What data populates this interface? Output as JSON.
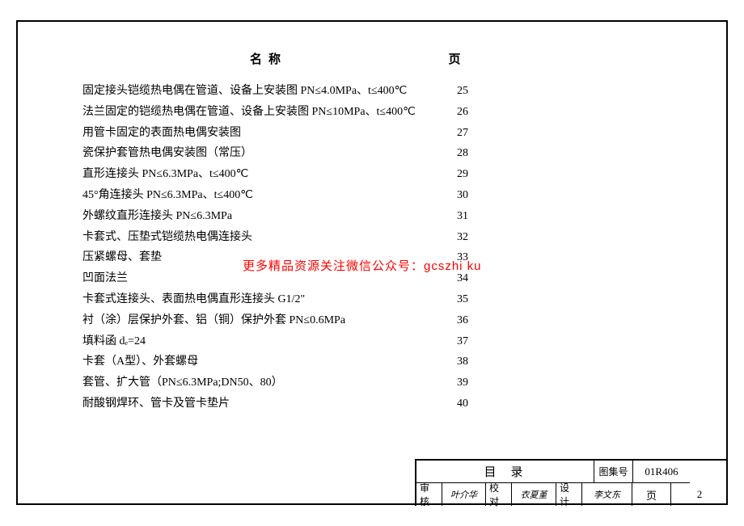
{
  "header": {
    "name_label": "名称",
    "page_label": "页"
  },
  "toc": [
    {
      "name": "固定接头铠缆热电偶在管道、设备上安装图 PN≤4.0MPa、t≤400℃",
      "page": "25"
    },
    {
      "name": "法兰固定的铠缆热电偶在管道、设备上安装图 PN≤10MPa、t≤400℃",
      "page": "26"
    },
    {
      "name": "用管卡固定的表面热电偶安装图",
      "page": "27"
    },
    {
      "name": "瓷保护套管热电偶安装图（常压）",
      "page": "28"
    },
    {
      "name": "直形连接头  PN≤6.3MPa、t≤400℃",
      "page": "29"
    },
    {
      "name": "45°角连接头 PN≤6.3MPa、t≤400℃",
      "page": "30"
    },
    {
      "name": "外螺纹直形连接头 PN≤6.3MPa",
      "page": "31"
    },
    {
      "name": "卡套式、压垫式铠缆热电偶连接头",
      "page": "32"
    },
    {
      "name": "压紧螺母、套垫",
      "page": "33"
    },
    {
      "name": "凹面法兰",
      "page": "34"
    },
    {
      "name": "卡套式连接头、表面热电偶直形连接头 G1/2\"",
      "page": "35"
    },
    {
      "name": "衬（涂）层保护外套、铝（铜）保护外套 PN≤0.6MPa",
      "page": "36"
    },
    {
      "name": "填料函 dₑ=24",
      "page": "37"
    },
    {
      "name": "卡套（A型）、外套螺母",
      "page": "38"
    },
    {
      "name": "套管、扩大管（PN≤6.3MPa;DN50、80）",
      "page": "39"
    },
    {
      "name": "耐酸钢焊环、管卡及管卡垫片",
      "page": "40"
    }
  ],
  "watermark": "更多精品资源关注微信公众号：gcszhi ku",
  "title_block": {
    "title": "目录",
    "drawing_set_label": "图集号",
    "drawing_set": "01R406",
    "review_label": "审核",
    "review_sig": "叶介华",
    "check_label": "校对",
    "check_sig": "衣夏堇",
    "design_label": "设计",
    "design_sig": "李文东",
    "page_label": "页",
    "page_num": "2"
  }
}
